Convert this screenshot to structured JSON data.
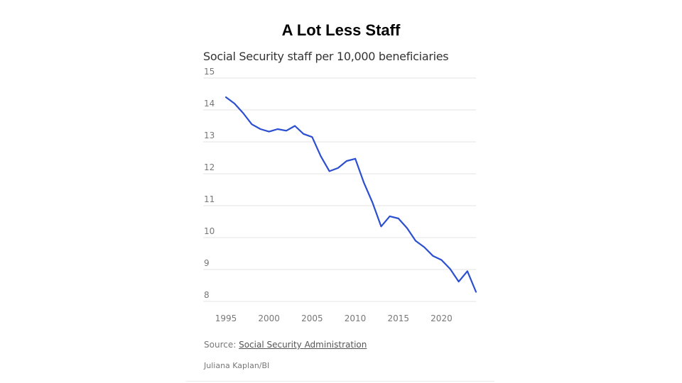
{
  "header": {
    "title": "A Lot Less Staff"
  },
  "chart_data": {
    "type": "line",
    "title": "Social Security staff per 10,000 beneficiaries",
    "xlabel": "",
    "ylabel": "",
    "xlim": [
      1995,
      2024
    ],
    "ylim": [
      8,
      15
    ],
    "xticks": [
      1995,
      2000,
      2005,
      2010,
      2015,
      2020
    ],
    "yticks": [
      8,
      9,
      10,
      11,
      12,
      13,
      14,
      15
    ],
    "grid": true,
    "series": [
      {
        "color": "#2c4fd1",
        "x": [
          1995,
          1996,
          1997,
          1998,
          1999,
          2000,
          2001,
          2002,
          2003,
          2004,
          2005,
          2006,
          2007,
          2008,
          2009,
          2010,
          2011,
          2012,
          2013,
          2014,
          2015,
          2016,
          2017,
          2018,
          2019,
          2020,
          2021,
          2022,
          2023,
          2024
        ],
        "values": [
          14.4,
          14.2,
          13.9,
          13.55,
          13.4,
          13.32,
          13.4,
          13.35,
          13.5,
          13.25,
          13.15,
          12.55,
          12.08,
          12.18,
          12.4,
          12.47,
          11.72,
          11.1,
          10.35,
          10.67,
          10.6,
          10.3,
          9.9,
          9.7,
          9.43,
          9.3,
          9.02,
          8.62,
          8.95,
          8.3
        ]
      }
    ]
  },
  "footer": {
    "source_prefix": "Source: ",
    "source_link": "Social Security Administration",
    "credit": "Juliana Kaplan/BI"
  }
}
